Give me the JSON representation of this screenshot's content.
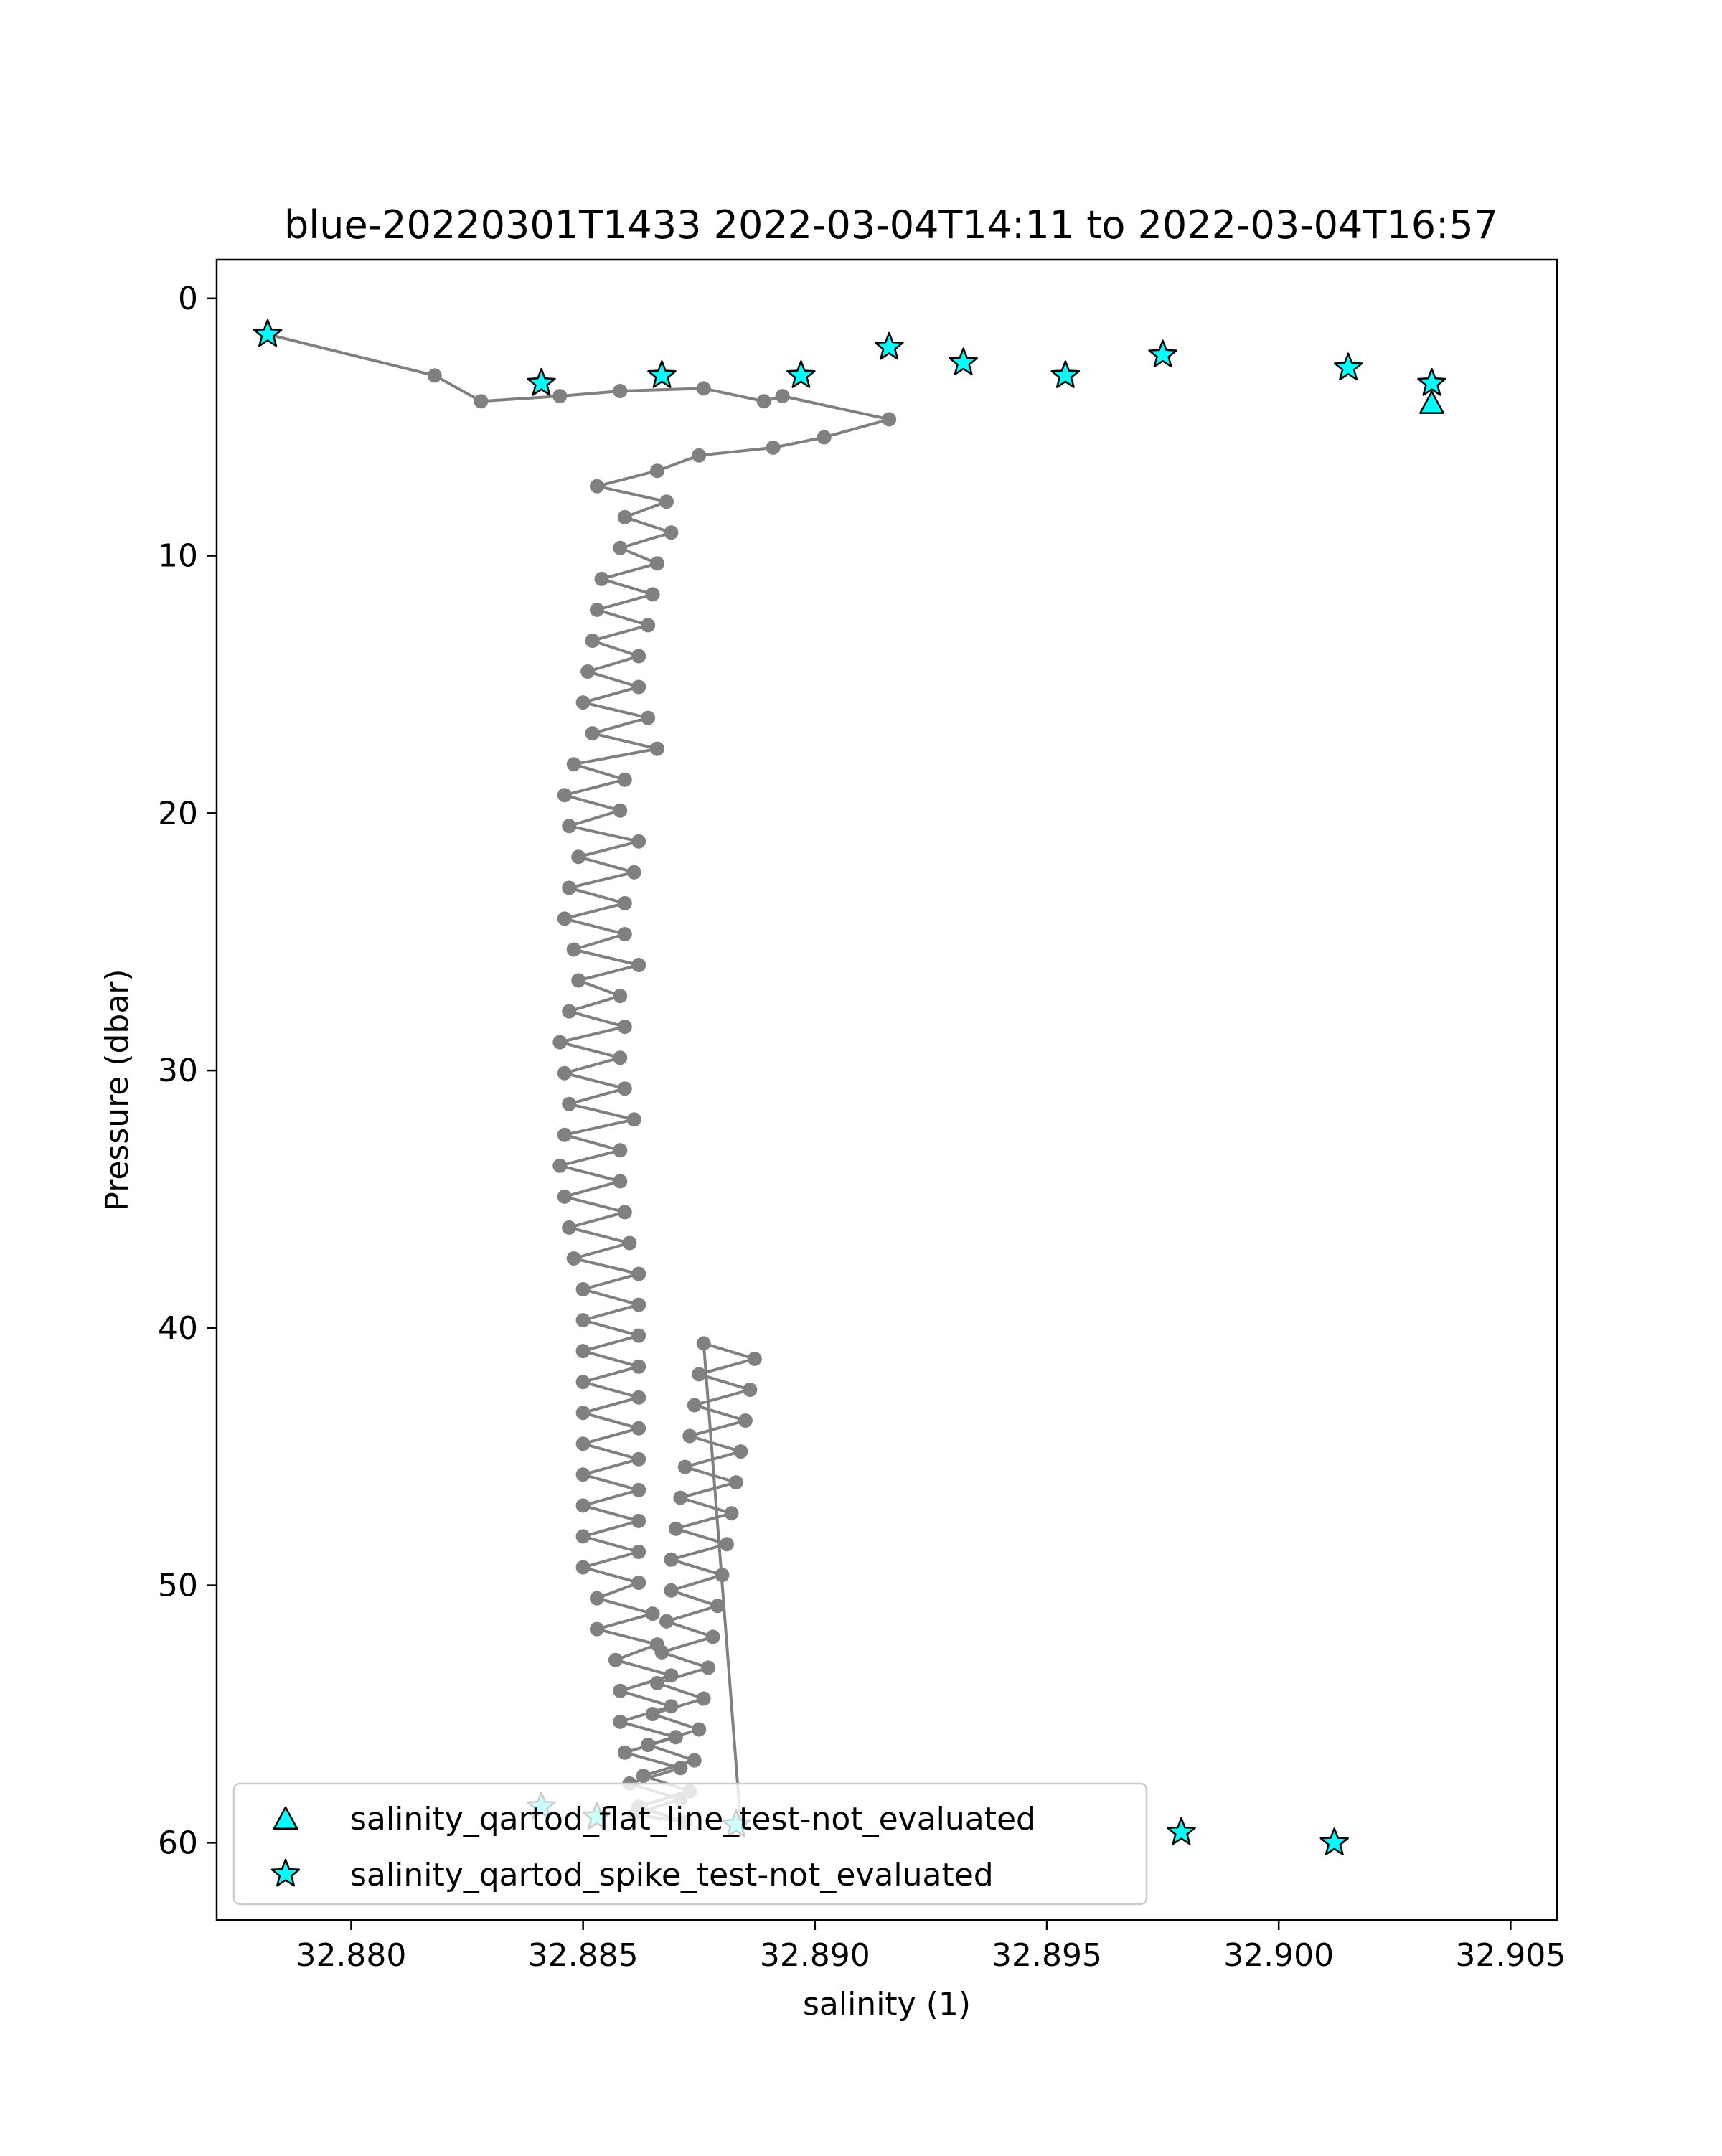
{
  "chart_data": {
    "type": "scatter",
    "title": "blue-20220301T1433 2022-03-04T14:11 to 2022-03-04T16:57",
    "xlabel": "salinity (1)",
    "ylabel": "Pressure (dbar)",
    "xlim": [
      32.8771,
      32.906
    ],
    "ylim": [
      -1.5,
      63
    ],
    "y_inverted": true,
    "grid": false,
    "legend_position": "lower-left",
    "line_color": "#808080",
    "marker_color": "#00ffff",
    "marker_edge_color": "#000000",
    "xticks": [
      32.88,
      32.885,
      32.89,
      32.895,
      32.9,
      32.905
    ],
    "xtick_labels": [
      "32.880",
      "32.885",
      "32.890",
      "32.895",
      "32.900",
      "32.905"
    ],
    "yticks": [
      0,
      10,
      20,
      30,
      40,
      50,
      60
    ],
    "ytick_labels": [
      "0",
      "10",
      "20",
      "30",
      "40",
      "50",
      "60"
    ],
    "profile": {
      "name": "salinity",
      "x": [
        32.8782,
        32.8818,
        32.8828,
        32.8845,
        32.8858,
        32.8876,
        32.8889,
        32.8893,
        32.8916,
        32.8902,
        32.8891,
        32.8875,
        32.8866,
        32.8853,
        32.8868,
        32.8859,
        32.8869,
        32.8858,
        32.8866,
        32.8854,
        32.8865,
        32.8853,
        32.8864,
        32.8852,
        32.8862,
        32.8851,
        32.8862,
        32.885,
        32.8864,
        32.8852,
        32.8866,
        32.8848,
        32.8859,
        32.8846,
        32.8858,
        32.8847,
        32.8862,
        32.8849,
        32.8861,
        32.8847,
        32.8859,
        32.8846,
        32.8859,
        32.8848,
        32.8862,
        32.8849,
        32.8858,
        32.8847,
        32.8859,
        32.8845,
        32.8858,
        32.8846,
        32.8859,
        32.8847,
        32.8861,
        32.8846,
        32.8858,
        32.8845,
        32.8858,
        32.8846,
        32.8859,
        32.8847,
        32.886,
        32.8848,
        32.8862,
        32.885,
        32.8862,
        32.885,
        32.8862,
        32.885,
        32.8862,
        32.885,
        32.8862,
        32.885,
        32.8862,
        32.885,
        32.8862,
        32.885,
        32.8862,
        32.885,
        32.8862,
        32.885,
        32.8862,
        32.885,
        32.8862,
        32.8853,
        32.8865,
        32.8853,
        32.8866,
        32.8857,
        32.8869,
        32.8858,
        32.8869,
        32.8858,
        32.887,
        32.8859,
        32.8871,
        32.886,
        32.8871,
        32.8861,
        32.8872,
        32.8862,
        32.8873,
        32.8863,
        32.8874,
        32.8864,
        32.8875,
        32.8865,
        32.8876,
        32.8866,
        32.8877,
        32.8867,
        32.8878,
        32.8868,
        32.8879,
        32.8869,
        32.888,
        32.8869,
        32.8881,
        32.887,
        32.8882,
        32.8871,
        32.8883,
        32.8872,
        32.8884,
        32.8873,
        32.8885,
        32.8874,
        32.8886,
        32.8875,
        32.8887,
        32.8876,
        32.8884
      ],
      "y": [
        1.4,
        3.0,
        4.0,
        3.8,
        3.6,
        3.5,
        4.0,
        3.8,
        4.7,
        5.4,
        5.8,
        6.1,
        6.7,
        7.3,
        7.9,
        8.5,
        9.1,
        9.7,
        10.3,
        10.9,
        11.5,
        12.1,
        12.7,
        13.3,
        13.9,
        14.5,
        15.1,
        15.7,
        16.3,
        16.9,
        17.5,
        18.1,
        18.7,
        19.3,
        19.9,
        20.5,
        21.1,
        21.7,
        22.3,
        22.9,
        23.5,
        24.1,
        24.7,
        25.3,
        25.9,
        26.5,
        27.1,
        27.7,
        28.3,
        28.9,
        29.5,
        30.1,
        30.7,
        31.3,
        31.9,
        32.5,
        33.1,
        33.7,
        34.3,
        34.9,
        35.5,
        36.1,
        36.7,
        37.3,
        37.9,
        38.5,
        39.1,
        39.7,
        40.3,
        40.9,
        41.5,
        42.1,
        42.7,
        43.3,
        43.9,
        44.5,
        45.1,
        45.7,
        46.3,
        46.9,
        47.5,
        48.1,
        48.7,
        49.3,
        49.9,
        50.5,
        51.1,
        51.7,
        52.3,
        52.9,
        53.5,
        54.1,
        54.7,
        55.3,
        55.9,
        56.5,
        57.1,
        57.7,
        58.3,
        58.9,
        59.2,
        58.6,
        58.0,
        57.4,
        56.8,
        56.2,
        55.6,
        55.0,
        54.4,
        53.8,
        53.2,
        52.6,
        52.0,
        51.4,
        50.8,
        50.2,
        49.6,
        49.0,
        48.4,
        47.8,
        47.2,
        46.6,
        46.0,
        45.4,
        44.8,
        44.2,
        43.6,
        43.0,
        42.4,
        41.8,
        41.2,
        40.6,
        59.3
      ]
    },
    "series": [
      {
        "name": "salinity_qartod_flat_line_test-not_evaluated",
        "marker": "triangle",
        "x": [
          32.9033
        ],
        "y": [
          4.1
        ]
      },
      {
        "name": "salinity_qartod_spike_test-not_evaluated",
        "marker": "star",
        "x": [
          32.8782,
          32.8841,
          32.8867,
          32.8897,
          32.8916,
          32.8932,
          32.8954,
          32.8975,
          32.9015,
          32.9033,
          32.8841,
          32.8853,
          32.8883,
          32.8979,
          32.9012
        ],
        "y": [
          1.4,
          3.3,
          3.0,
          3.0,
          1.9,
          2.5,
          3.0,
          2.2,
          2.7,
          3.3,
          58.6,
          59.0,
          59.3,
          59.6,
          60.0
        ]
      }
    ],
    "legend": [
      {
        "label": "salinity_qartod_flat_line_test-not_evaluated",
        "marker": "triangle"
      },
      {
        "label": "salinity_qartod_spike_test-not_evaluated",
        "marker": "star"
      }
    ]
  }
}
